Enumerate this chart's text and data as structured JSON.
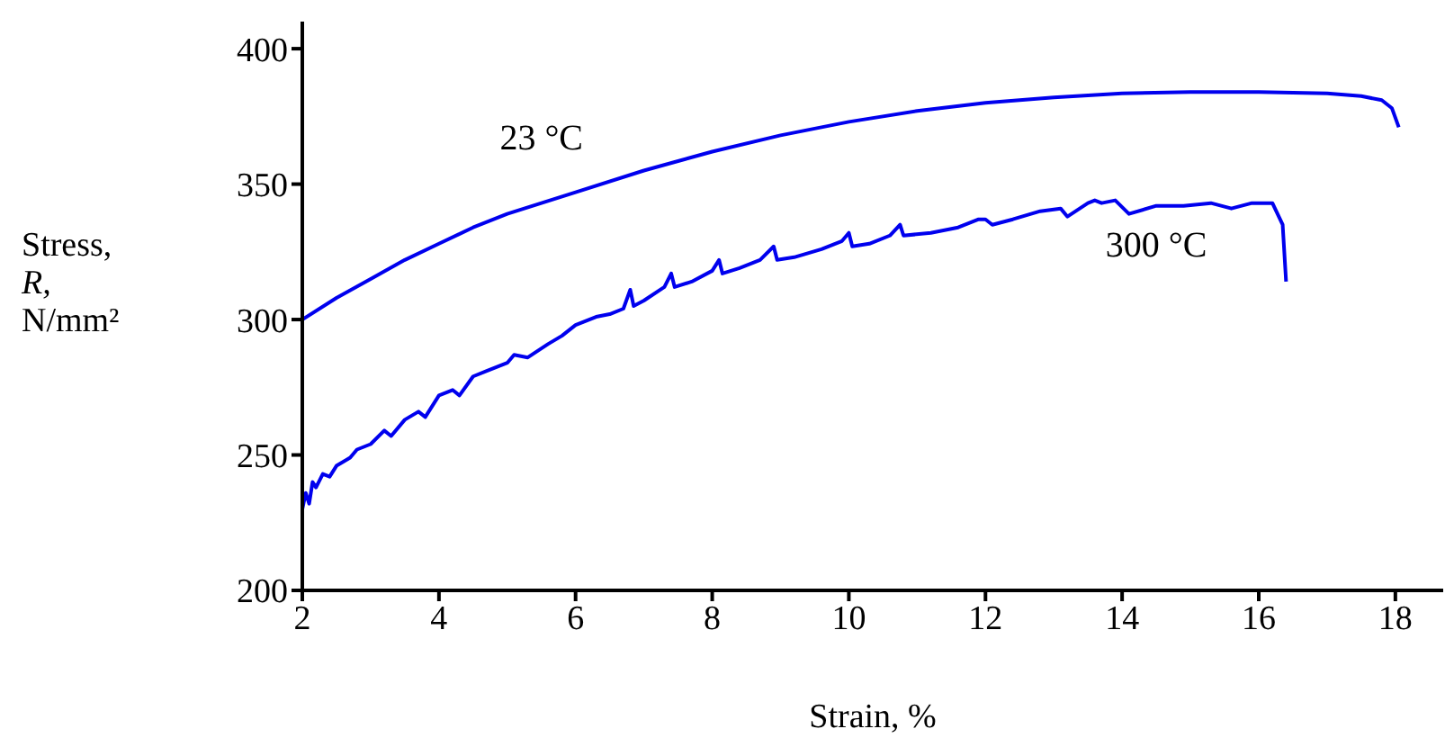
{
  "chart_data": {
    "type": "line",
    "xlabel": "Strain, %",
    "ylabel": "Stress, R, N/mm²",
    "xlim": [
      2,
      18.7
    ],
    "xticks": [
      2,
      4,
      6,
      8,
      10,
      12,
      14,
      16,
      18
    ],
    "ylim": [
      200,
      410
    ],
    "yticks": [
      200,
      250,
      300,
      350,
      400
    ],
    "marker": "none",
    "line_style": "solid",
    "series": [
      {
        "name": "23 °C",
        "color": "#0000ee",
        "x": [
          2,
          2.5,
          3,
          3.5,
          4,
          4.5,
          5,
          5.5,
          6,
          7,
          8,
          9,
          10,
          11,
          12,
          13,
          14,
          15,
          16,
          17,
          17.5,
          17.8,
          17.95,
          18.05
        ],
        "values": [
          300,
          308,
          315,
          322,
          328,
          334,
          339,
          343,
          347,
          355,
          362,
          368,
          373,
          377,
          380,
          382,
          383.5,
          384,
          384,
          383.5,
          382.5,
          381,
          378,
          371
        ]
      },
      {
        "name": "300 °C",
        "color": "#0000ee",
        "x": [
          2,
          2.05,
          2.1,
          2.15,
          2.2,
          2.3,
          2.4,
          2.5,
          2.7,
          2.8,
          3,
          3.2,
          3.3,
          3.5,
          3.7,
          3.8,
          4,
          4.2,
          4.3,
          4.5,
          4.7,
          5,
          5.1,
          5.3,
          5.6,
          5.8,
          6,
          6.3,
          6.5,
          6.7,
          6.8,
          6.85,
          7,
          7.3,
          7.4,
          7.45,
          7.7,
          8,
          8.1,
          8.15,
          8.4,
          8.7,
          8.9,
          8.95,
          9.2,
          9.6,
          9.9,
          10,
          10.05,
          10.3,
          10.6,
          10.75,
          10.8,
          11.2,
          11.6,
          11.9,
          12,
          12.1,
          12.4,
          12.8,
          13.1,
          13.2,
          13.5,
          13.6,
          13.7,
          13.9,
          14.1,
          14.5,
          14.9,
          15.3,
          15.6,
          15.9,
          16.2,
          16.35,
          16.4
        ],
        "values": [
          230,
          236,
          232,
          240,
          238,
          243,
          242,
          246,
          249,
          252,
          254,
          259,
          257,
          263,
          266,
          264,
          272,
          274,
          272,
          279,
          281,
          284,
          287,
          286,
          291,
          294,
          298,
          301,
          302,
          304,
          311,
          305,
          307,
          312,
          317,
          312,
          314,
          318,
          322,
          317,
          319,
          322,
          327,
          322,
          323,
          326,
          329,
          332,
          327,
          328,
          331,
          335,
          331,
          332,
          334,
          337,
          337,
          335,
          337,
          340,
          341,
          338,
          343,
          344,
          343,
          344,
          339,
          342,
          342,
          343,
          341,
          343,
          343,
          335,
          314
        ]
      }
    ]
  }
}
